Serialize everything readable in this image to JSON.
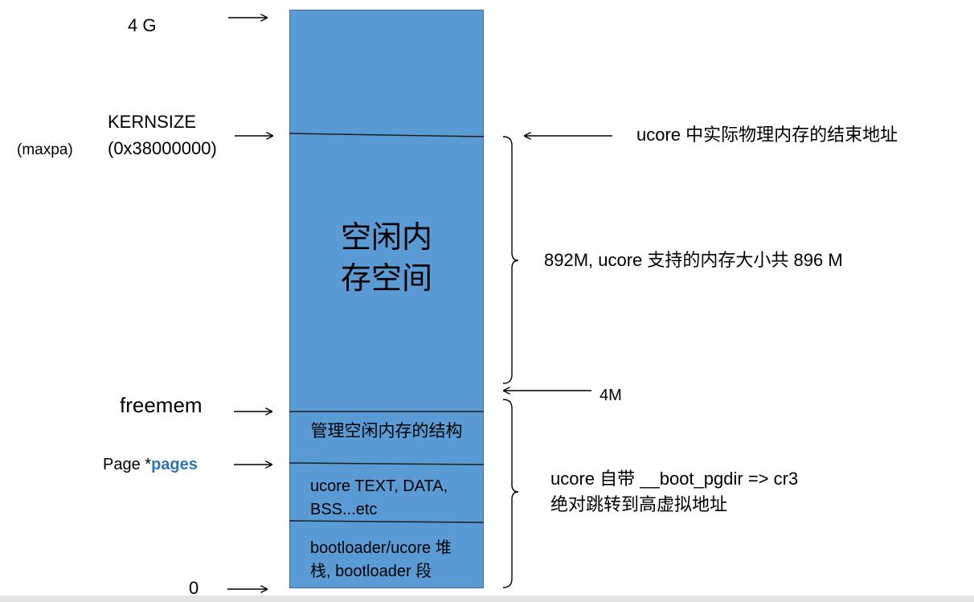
{
  "left_labels": {
    "top": "4 G",
    "kernsize": "KERNSIZE",
    "kernsize_value": "(0x38000000)",
    "maxpa": "(maxpa)",
    "freemem": "freemem",
    "pages_prefix": "Page *",
    "pages_bold": "pages",
    "zero": "0"
  },
  "block": {
    "free_region": "空闲内\n存空间",
    "manage_region": "管理空闲内存的结构",
    "text_region": "ucore TEXT, DATA,\nBSS...etc",
    "stack_region": "bootloader/ucore 堆\n栈, bootloader 段"
  },
  "right_labels": {
    "end_address": "ucore 中实际物理内存的结束地址",
    "size": "892M, ucore 支持的内存大小共 896 M",
    "four_m": "4M",
    "boot_pgdir": "ucore 自带 __boot_pgdir => cr3\n绝对跳转到高虚拟地址"
  },
  "colors": {
    "block_fill": "#5b9bd5",
    "pages_text": "#2e75b6"
  }
}
